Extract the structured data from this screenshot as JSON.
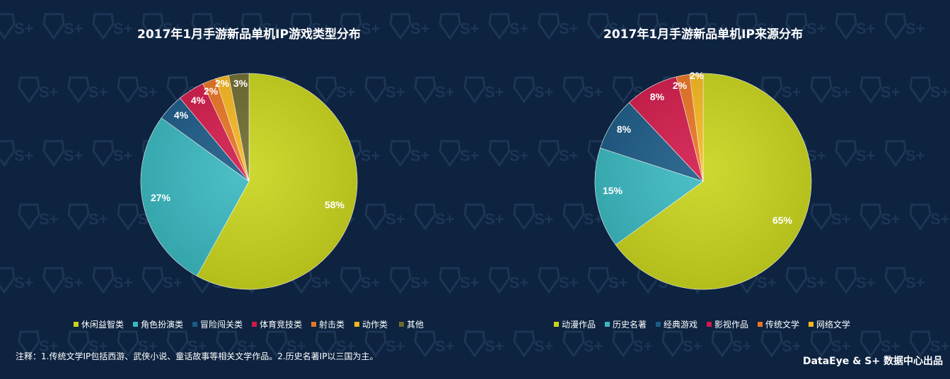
{
  "note": "注释：1.传统文学IP包括西游、武侠小说、童话故事等相关文学作品。2.历史名著IP以三国为主。",
  "credit": "DataEye & S+ 数据中心出品",
  "watermark": "S+",
  "chart_data": [
    {
      "type": "pie",
      "title": "2017年1月手游新品单机IP游戏类型分布",
      "categories": [
        "休闲益智类",
        "角色扮演类",
        "冒险闯关类",
        "体育竞技类",
        "射击类",
        "动作类",
        "其他"
      ],
      "values": [
        58,
        27,
        4,
        4,
        2,
        2,
        3
      ],
      "labels": [
        "58%",
        "27%",
        "4%",
        "4%",
        "2%",
        "2%",
        "3%"
      ],
      "colors": [
        "#c8d41c",
        "#39b8c0",
        "#1c5a86",
        "#d21a4a",
        "#ea7423",
        "#f6b61e",
        "#6e6a2e"
      ],
      "legend": "bottom"
    },
    {
      "type": "pie",
      "title": "2017年1月手游新品单机IP来源分布",
      "categories": [
        "动漫作品",
        "历史名著",
        "经典游戏",
        "影视作品",
        "传统文学",
        "网络文学"
      ],
      "values": [
        65,
        15,
        8,
        8,
        2,
        2
      ],
      "labels": [
        "65%",
        "15%",
        "8%",
        "8%",
        "2%",
        "2%"
      ],
      "colors": [
        "#c8d41c",
        "#39b8c0",
        "#1c5a86",
        "#d21a4a",
        "#ea7423",
        "#f6b61e"
      ],
      "legend": "bottom"
    }
  ]
}
